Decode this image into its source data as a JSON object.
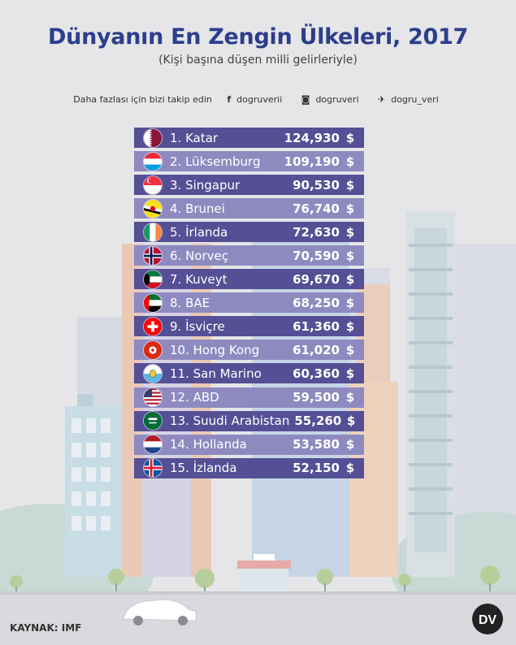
{
  "header": {
    "title": "Dünyanın En Zengin Ülkeleri, 2017",
    "subtitle": "(Kişi başına düşen milli gelirleriyle)"
  },
  "social": {
    "prompt": "Daha fazlası için bizi takip edin",
    "facebook": "dogruverii",
    "instagram": "dogruveri",
    "twitter": "dogru_veri"
  },
  "ranking": {
    "currency": "$",
    "items": [
      {
        "label": "1. Katar",
        "value": "124,930",
        "flag": "qatar-flag-icon"
      },
      {
        "label": "2. Lüksemburg",
        "value": "109,190",
        "flag": "luxembourg-flag-icon"
      },
      {
        "label": "3. Singapur",
        "value": "90,530",
        "flag": "singapore-flag-icon"
      },
      {
        "label": "4. Brunei",
        "value": "76,740",
        "flag": "brunei-flag-icon"
      },
      {
        "label": "5. İrlanda",
        "value": "72,630",
        "flag": "ireland-flag-icon"
      },
      {
        "label": "6. Norveç",
        "value": "70,590",
        "flag": "norway-flag-icon"
      },
      {
        "label": "7. Kuveyt",
        "value": "69,670",
        "flag": "kuwait-flag-icon"
      },
      {
        "label": "8. BAE",
        "value": "68,250",
        "flag": "uae-flag-icon"
      },
      {
        "label": "9. İsviçre",
        "value": "61,360",
        "flag": "switzerland-flag-icon"
      },
      {
        "label": "10. Hong Kong",
        "value": "61,020",
        "flag": "hongkong-flag-icon"
      },
      {
        "label": "11. San Marino",
        "value": "60,360",
        "flag": "sanmarino-flag-icon"
      },
      {
        "label": "12. ABD",
        "value": "59,500",
        "flag": "usa-flag-icon"
      },
      {
        "label": "13. Suudi Arabistan",
        "value": "55,260",
        "flag": "saudi-flag-icon"
      },
      {
        "label": "14. Hollanda",
        "value": "53,580",
        "flag": "netherlands-flag-icon"
      },
      {
        "label": "15. İzlanda",
        "value": "52,150",
        "flag": "iceland-flag-icon"
      }
    ]
  },
  "footer": {
    "source": "KAYNAK: IMF",
    "logo_text": "DV"
  },
  "colors": {
    "title": "#2c3e8c",
    "row_dark": "#554f95",
    "row_light": "#8e8ac0"
  }
}
